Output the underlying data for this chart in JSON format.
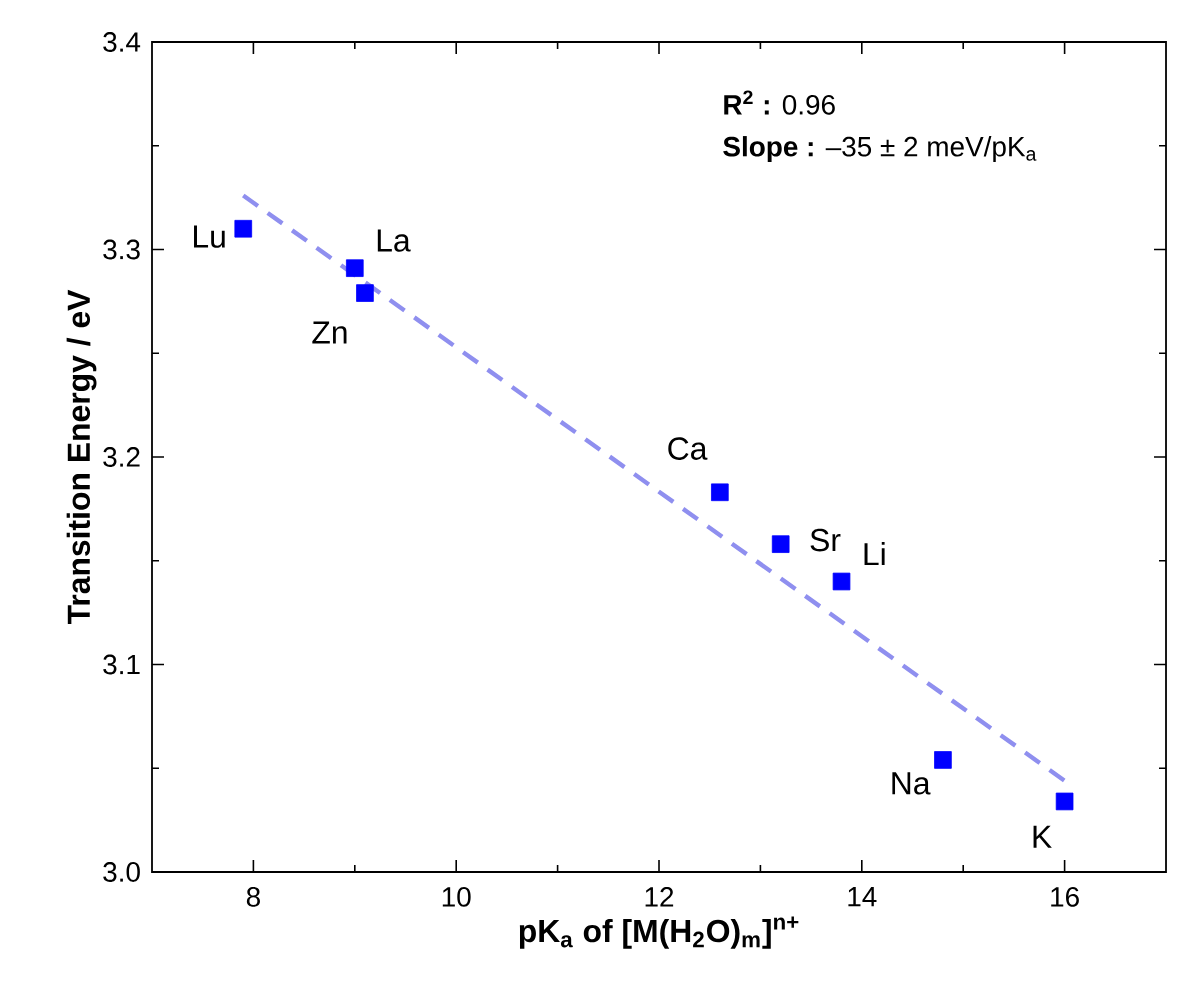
{
  "chart_data": {
    "type": "scatter",
    "xlabel": "pK$_{a}$ of [M(H$_{2}$O)$_{m}$]$^{n+}$",
    "ylabel": "Transition Energy / eV",
    "xlim": [
      7,
      17
    ],
    "ylim": [
      3.0,
      3.4
    ],
    "xticks": [
      8,
      10,
      12,
      14,
      16
    ],
    "yticks": [
      {
        "value": 3.0,
        "label": "3.0"
      },
      {
        "value": 3.1,
        "label": "3.1"
      },
      {
        "value": 3.2,
        "label": "3.2"
      },
      {
        "value": 3.3,
        "label": "3.3"
      },
      {
        "value": 3.4,
        "label": "3.4"
      }
    ],
    "marker": "square",
    "series": [
      {
        "color": "#0000ff",
        "x": [
          7.9,
          9.0,
          9.1,
          12.6,
          13.2,
          13.8,
          14.8,
          16.0
        ],
        "values": [
          3.31,
          3.291,
          3.279,
          3.183,
          3.158,
          3.14,
          3.054,
          3.034
        ]
      },
      {
        "type": "line",
        "color": "#8f8fef",
        "line_style": "dashed",
        "marker": "none",
        "x": [
          7.9,
          16.0
        ],
        "values": [
          3.326,
          3.044
        ]
      }
    ],
    "annotations": [
      {
        "text": "Lu",
        "x": 7.9,
        "y": 3.31
      },
      {
        "text": "La",
        "x": 9.0,
        "y": 3.291
      },
      {
        "text": "Zn",
        "x": 9.1,
        "y": 3.279
      },
      {
        "text": "Ca",
        "x": 12.6,
        "y": 3.183
      },
      {
        "text": "Sr",
        "x": 13.2,
        "y": 3.158
      },
      {
        "text": "Li",
        "x": 13.8,
        "y": 3.14
      },
      {
        "text": "Na",
        "x": 14.8,
        "y": 3.054
      },
      {
        "text": "K",
        "x": 16.0,
        "y": 3.034
      },
      "**R$^{2}$ :** 0.96",
      "**Slope :** –35 ± 2 meV/pK$_{a}$"
    ]
  }
}
